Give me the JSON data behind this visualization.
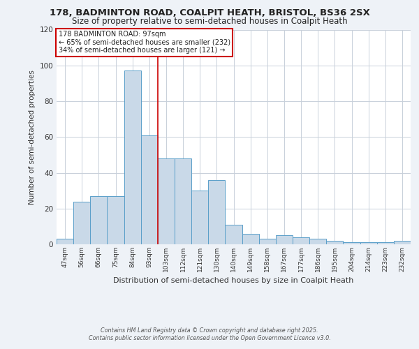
{
  "title_line1": "178, BADMINTON ROAD, COALPIT HEATH, BRISTOL, BS36 2SX",
  "title_line2": "Size of property relative to semi-detached houses in Coalpit Heath",
  "xlabel": "Distribution of semi-detached houses by size in Coalpit Heath",
  "ylabel": "Number of semi-detached properties",
  "categories": [
    "47sqm",
    "56sqm",
    "66sqm",
    "75sqm",
    "84sqm",
    "93sqm",
    "103sqm",
    "112sqm",
    "121sqm",
    "130sqm",
    "140sqm",
    "149sqm",
    "158sqm",
    "167sqm",
    "177sqm",
    "186sqm",
    "195sqm",
    "204sqm",
    "214sqm",
    "223sqm",
    "232sqm"
  ],
  "values": [
    3,
    24,
    27,
    27,
    97,
    61,
    48,
    48,
    30,
    36,
    11,
    6,
    3,
    5,
    4,
    3,
    2,
    1,
    1,
    1,
    2
  ],
  "bar_color": "#c9d9e8",
  "bar_edge_color": "#5a9fc9",
  "annotation_line1": "178 BADMINTON ROAD: 97sqm",
  "annotation_line2": "← 65% of semi-detached houses are smaller (232)",
  "annotation_line3": "34% of semi-detached houses are larger (121) →",
  "annotation_box_color": "#ffffff",
  "annotation_box_edge_color": "#cc0000",
  "property_line_x": 5.5,
  "footer_line1": "Contains HM Land Registry data © Crown copyright and database right 2025.",
  "footer_line2": "Contains public sector information licensed under the Open Government Licence v3.0.",
  "bg_color": "#eef2f7",
  "plot_bg_color": "#ffffff",
  "grid_color": "#c8d0da",
  "ylim": [
    0,
    120
  ],
  "yticks": [
    0,
    20,
    40,
    60,
    80,
    100,
    120
  ]
}
